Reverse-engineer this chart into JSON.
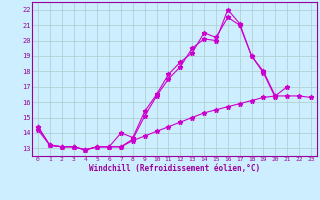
{
  "xlabel": "Windchill (Refroidissement éolien,°C)",
  "background_color": "#cceeff",
  "grid_color": "#aacccc",
  "line_color": "#cc00cc",
  "xlim": [
    -0.5,
    23.5
  ],
  "ylim": [
    12.5,
    22.5
  ],
  "xticks": [
    0,
    1,
    2,
    3,
    4,
    5,
    6,
    7,
    8,
    9,
    10,
    11,
    12,
    13,
    14,
    15,
    16,
    17,
    18,
    19,
    20,
    21,
    22,
    23
  ],
  "yticks": [
    13,
    14,
    15,
    16,
    17,
    18,
    19,
    20,
    21,
    22
  ],
  "s1_x": [
    0,
    1,
    2,
    3,
    4,
    5,
    6,
    7,
    8,
    9,
    10,
    11,
    12,
    13,
    14,
    15,
    16,
    17,
    18,
    19,
    20,
    21
  ],
  "s1_y": [
    14.4,
    13.2,
    13.1,
    13.1,
    12.9,
    13.1,
    13.1,
    13.1,
    13.6,
    15.1,
    16.4,
    17.5,
    18.3,
    19.5,
    20.1,
    20.0,
    22.0,
    21.1,
    19.0,
    18.0,
    16.4,
    17.0
  ],
  "s2_x": [
    0,
    1,
    2,
    3,
    4,
    5,
    6,
    7,
    8,
    9,
    10,
    11,
    12,
    13,
    14,
    15,
    16,
    17,
    18,
    19,
    20
  ],
  "s2_y": [
    14.4,
    13.2,
    13.1,
    13.1,
    12.9,
    13.1,
    13.1,
    14.0,
    13.7,
    15.4,
    16.5,
    17.8,
    18.6,
    19.2,
    20.5,
    20.2,
    21.5,
    21.0,
    19.0,
    17.9,
    16.3
  ],
  "s3_x": [
    0,
    1,
    2,
    3,
    4,
    5,
    6,
    7,
    8,
    9,
    10,
    11,
    12,
    13,
    14,
    15,
    16,
    17,
    18,
    19,
    20,
    21,
    22,
    23
  ],
  "s3_y": [
    14.2,
    13.2,
    13.1,
    13.1,
    12.9,
    13.1,
    13.1,
    13.1,
    13.5,
    13.8,
    14.1,
    14.4,
    14.7,
    15.0,
    15.3,
    15.5,
    15.7,
    15.9,
    16.1,
    16.3,
    16.4,
    16.4,
    16.4,
    16.3
  ]
}
